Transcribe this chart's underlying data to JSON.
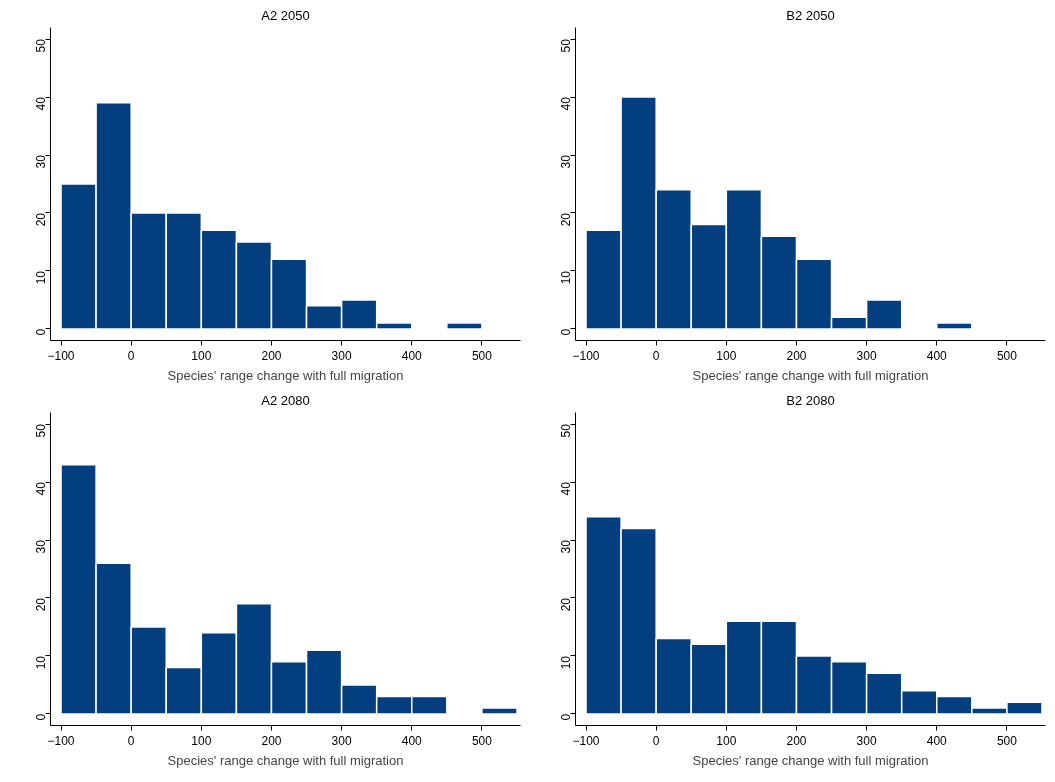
{
  "chart_data": [
    {
      "type": "histogram",
      "title": "A2 2050",
      "xlabel": "Species' range change with full migration",
      "color": "#033f7f",
      "bins": [
        -100,
        -50,
        0,
        50,
        100,
        150,
        200,
        250,
        300,
        350,
        400,
        450,
        500
      ],
      "values": [
        25,
        39,
        20,
        20,
        17,
        15,
        12,
        4,
        5,
        1,
        0,
        1
      ],
      "xlim": [
        -115,
        555
      ],
      "ylim": [
        -2,
        52
      ],
      "xticks": [
        -100,
        0,
        100,
        200,
        300,
        400,
        500
      ],
      "yticks": [
        0,
        10,
        20,
        30,
        40,
        50
      ]
    },
    {
      "type": "histogram",
      "title": "B2 2050",
      "xlabel": "Species' range change with full migration",
      "color": "#033f7f",
      "bins": [
        -100,
        -50,
        0,
        50,
        100,
        150,
        200,
        250,
        300,
        350,
        400,
        450
      ],
      "values": [
        17,
        40,
        24,
        18,
        24,
        16,
        12,
        2,
        5,
        0,
        1
      ],
      "xlim": [
        -115,
        555
      ],
      "ylim": [
        -2,
        52
      ],
      "xticks": [
        -100,
        0,
        100,
        200,
        300,
        400,
        500
      ],
      "yticks": [
        0,
        10,
        20,
        30,
        40,
        50
      ]
    },
    {
      "type": "histogram",
      "title": "A2 2080",
      "xlabel": "Species' range change with full migration",
      "color": "#033f7f",
      "bins": [
        -100,
        -50,
        0,
        50,
        100,
        150,
        200,
        250,
        300,
        350,
        400,
        450,
        500,
        550
      ],
      "values": [
        43,
        26,
        15,
        8,
        14,
        19,
        9,
        11,
        5,
        3,
        3,
        0,
        1
      ],
      "xlim": [
        -115,
        555
      ],
      "ylim": [
        -2,
        52
      ],
      "xticks": [
        -100,
        0,
        100,
        200,
        300,
        400,
        500
      ],
      "yticks": [
        0,
        10,
        20,
        30,
        40,
        50
      ]
    },
    {
      "type": "histogram",
      "title": "B2 2080",
      "xlabel": "Species' range change with full migration",
      "color": "#033f7f",
      "bins": [
        -100,
        -50,
        0,
        50,
        100,
        150,
        200,
        250,
        300,
        350,
        400,
        450,
        500,
        550
      ],
      "values": [
        34,
        32,
        13,
        12,
        16,
        16,
        10,
        9,
        7,
        4,
        3,
        1,
        2
      ],
      "xlim": [
        -115,
        555
      ],
      "ylim": [
        -2,
        52
      ],
      "xticks": [
        -100,
        0,
        100,
        200,
        300,
        400,
        500
      ],
      "yticks": [
        0,
        10,
        20,
        30,
        40,
        50
      ]
    }
  ]
}
